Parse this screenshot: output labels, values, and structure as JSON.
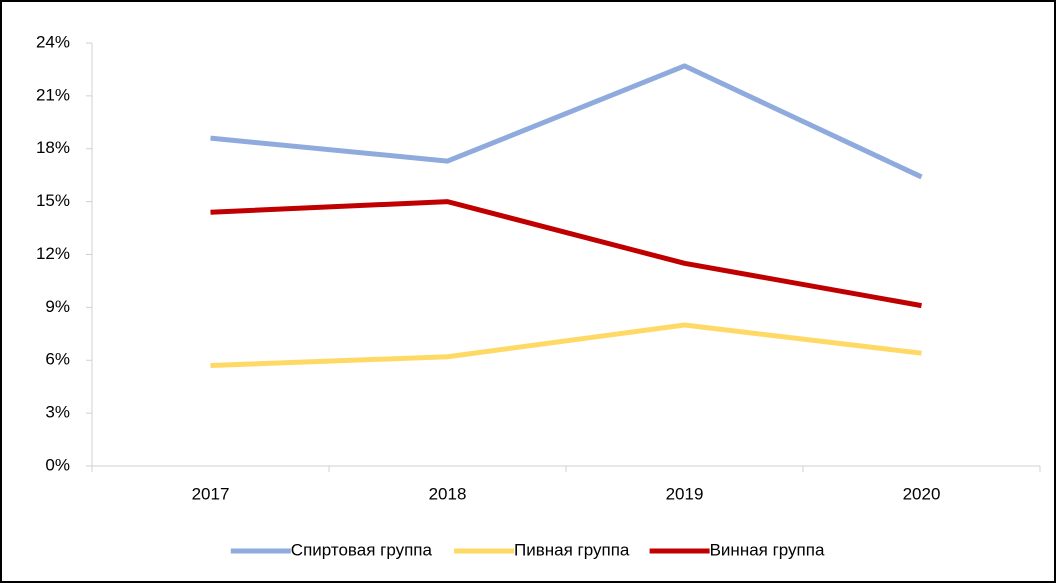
{
  "chart_data": {
    "type": "line",
    "categories": [
      "2017",
      "2018",
      "2019",
      "2020"
    ],
    "series": [
      {
        "name": "Спиртовая группа",
        "color": "#8faadc",
        "values": [
          18.6,
          17.3,
          22.7,
          16.4
        ]
      },
      {
        "name": "Пивная группа",
        "color": "#ffd966",
        "values": [
          5.7,
          6.2,
          8.0,
          6.4
        ]
      },
      {
        "name": "Винная группа",
        "color": "#c00000",
        "values": [
          14.4,
          15.0,
          11.5,
          9.1
        ]
      }
    ],
    "ylim": [
      0,
      24
    ],
    "yticks": [
      {
        "value": 0,
        "label": "0%"
      },
      {
        "value": 3,
        "label": "3%"
      },
      {
        "value": 6,
        "label": "6%"
      },
      {
        "value": 9,
        "label": "9%"
      },
      {
        "value": 12,
        "label": "12%"
      },
      {
        "value": 15,
        "label": "15%"
      },
      {
        "value": 18,
        "label": "18%"
      },
      {
        "value": 21,
        "label": "21%"
      },
      {
        "value": 24,
        "label": "24%"
      }
    ],
    "grid": false,
    "legend": "bottom"
  }
}
